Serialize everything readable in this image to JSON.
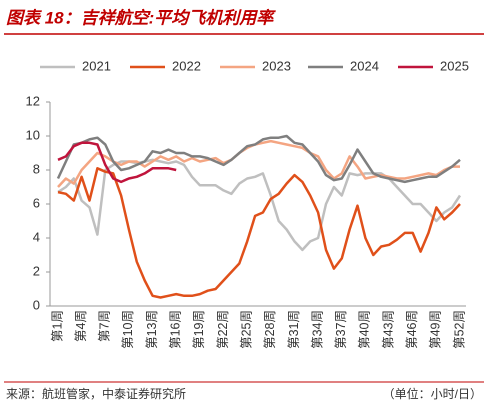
{
  "chart_data": {
    "type": "line",
    "title": "图表 18：吉祥航空:平均飞机利用率",
    "source": "来源：航班管家，中泰证券研究所",
    "unit_note": "（单位：小时/日）",
    "categories": [
      "第1周",
      null,
      null,
      "第4周",
      null,
      null,
      "第7周",
      null,
      null,
      "第10周",
      null,
      null,
      "第13周",
      null,
      null,
      "第16周",
      null,
      null,
      "第19周",
      null,
      null,
      "第22周",
      null,
      null,
      "第25周",
      null,
      null,
      "第28周",
      null,
      null,
      "第31周",
      null,
      null,
      "第34周",
      null,
      null,
      "第37周",
      null,
      null,
      "第40周",
      null,
      null,
      "第43周",
      null,
      null,
      "第46周",
      null,
      null,
      "第49周",
      null,
      null,
      "第52周"
    ],
    "ylim": [
      0,
      12
    ],
    "yticks": [
      0,
      2,
      4,
      6,
      8,
      10,
      12
    ],
    "grid": false,
    "series": [
      {
        "name": "2021",
        "color": "#bfbfbf",
        "values": [
          6.7,
          7.0,
          7.5,
          6.2,
          5.8,
          4.2,
          8.0,
          8.3,
          8.5,
          8.5,
          8.4,
          8.5,
          8.6,
          8.5,
          8.4,
          8.5,
          8.3,
          7.6,
          7.1,
          7.1,
          7.1,
          6.8,
          6.6,
          7.2,
          7.5,
          7.6,
          7.8,
          6.5,
          5.0,
          4.5,
          3.8,
          3.3,
          3.8,
          4.0,
          6.0,
          7.0,
          6.5,
          7.8,
          7.7,
          7.8,
          7.8,
          7.8,
          7.5,
          7.0,
          6.5,
          6.0,
          6.0,
          5.5,
          5.0,
          5.5,
          5.8,
          6.5
        ]
      },
      {
        "name": "2022",
        "color": "#e0501a",
        "values": [
          6.7,
          6.6,
          6.2,
          7.6,
          6.2,
          8.1,
          7.9,
          7.8,
          6.5,
          4.5,
          2.6,
          1.5,
          0.6,
          0.5,
          0.6,
          0.7,
          0.6,
          0.6,
          0.7,
          0.9,
          1.0,
          1.5,
          2.0,
          2.5,
          3.8,
          5.3,
          5.5,
          6.3,
          6.6,
          7.2,
          7.7,
          7.3,
          6.5,
          5.5,
          3.3,
          2.2,
          2.8,
          4.5,
          5.9,
          4.0,
          3.0,
          3.5,
          3.6,
          3.9,
          4.3,
          4.3,
          3.2,
          4.3,
          5.8,
          5.1,
          5.5,
          6.0
        ]
      },
      {
        "name": "2023",
        "color": "#f4a582",
        "values": [
          7.0,
          7.5,
          7.2,
          8.0,
          8.5,
          9.0,
          8.8,
          8.5,
          8.3,
          8.5,
          8.5,
          8.2,
          8.5,
          8.8,
          8.6,
          8.8,
          8.5,
          8.7,
          8.5,
          8.6,
          8.7,
          8.4,
          8.6,
          9.0,
          9.3,
          9.5,
          9.6,
          9.7,
          9.6,
          9.5,
          9.4,
          9.3,
          9.0,
          8.8,
          8.0,
          7.5,
          7.8,
          8.8,
          8.2,
          7.5,
          7.6,
          7.7,
          7.6,
          7.5,
          7.5,
          7.6,
          7.7,
          7.8,
          7.7,
          8.0,
          8.2,
          8.2
        ]
      },
      {
        "name": "2024",
        "color": "#7f7f7f",
        "values": [
          7.5,
          8.5,
          9.5,
          9.6,
          9.8,
          9.9,
          9.5,
          8.5,
          8.0,
          8.1,
          8.3,
          8.5,
          9.1,
          9.0,
          9.2,
          9.0,
          9.0,
          8.8,
          8.8,
          8.7,
          8.5,
          8.3,
          8.6,
          9.0,
          9.4,
          9.5,
          9.8,
          9.9,
          9.9,
          10.0,
          9.6,
          9.5,
          9.0,
          8.5,
          7.7,
          7.4,
          7.5,
          8.3,
          9.2,
          8.5,
          7.8,
          7.6,
          7.5,
          7.4,
          7.3,
          7.4,
          7.5,
          7.6,
          7.6,
          7.9,
          8.2,
          8.6
        ]
      },
      {
        "name": "2025",
        "color": "#c0143c",
        "values": [
          8.6,
          8.8,
          9.4,
          9.6,
          9.6,
          9.5,
          8.3,
          7.5,
          7.3,
          7.5,
          7.6,
          7.8,
          8.1,
          8.1,
          8.1,
          8.0,
          null,
          null,
          null,
          null,
          null,
          null,
          null,
          null,
          null,
          null,
          null,
          null,
          null,
          null,
          null,
          null,
          null,
          null,
          null,
          null,
          null,
          null,
          null,
          null,
          null,
          null,
          null,
          null,
          null,
          null,
          null,
          null,
          null,
          null,
          null,
          null
        ]
      }
    ]
  }
}
